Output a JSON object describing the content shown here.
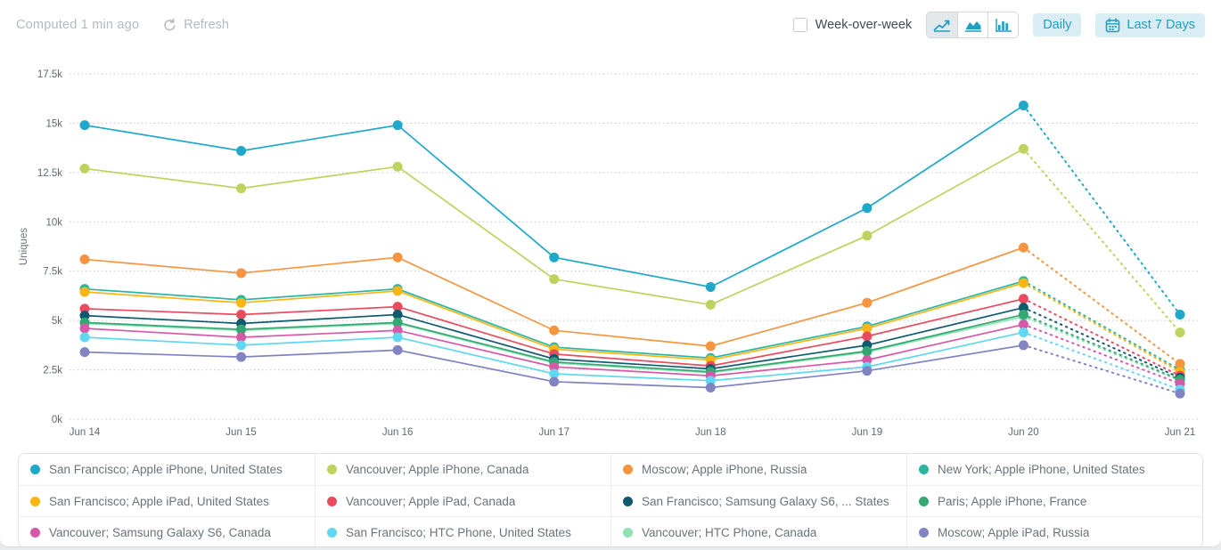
{
  "header": {
    "computed_label": "Computed 1 min ago",
    "refresh_label": "Refresh",
    "week_over_week_label": "Week-over-week",
    "daily_label": "Daily",
    "date_range_label": "Last 7 Days",
    "accent_color": "#1f9fc2",
    "chart_type_selected": "line"
  },
  "chart_data": {
    "type": "line",
    "title": "",
    "xlabel": "",
    "ylabel": "Uniques",
    "unit": "k",
    "ylim": [
      0,
      17.5
    ],
    "ytick_step": 2.5,
    "yticks": [
      "0k",
      "2.5k",
      "5k",
      "7.5k",
      "10k",
      "12.5k",
      "15k",
      "17.5k"
    ],
    "grid": "dotted-horizontal",
    "legend_position": "bottom",
    "last_segment_style": "dotted",
    "x": [
      "Jun 14",
      "Jun 15",
      "Jun 16",
      "Jun 17",
      "Jun 18",
      "Jun 19",
      "Jun 20",
      "Jun 21"
    ],
    "draw_order": [
      3,
      10,
      0,
      1,
      2,
      4,
      5,
      6,
      7,
      8,
      9,
      11
    ],
    "series": [
      {
        "name": "San Francisco; Apple iPhone, United States",
        "color": "#1fa8c9",
        "values": [
          14.9,
          13.6,
          14.9,
          8.2,
          6.7,
          10.7,
          15.9,
          5.3
        ]
      },
      {
        "name": "Vancouver; Apple iPhone, Canada",
        "color": "#bcd35f",
        "values": [
          12.7,
          11.7,
          12.8,
          7.1,
          5.8,
          9.3,
          13.7,
          4.4
        ]
      },
      {
        "name": "Moscow; Apple iPhone, Russia",
        "color": "#f79440",
        "values": [
          8.1,
          7.4,
          8.2,
          4.5,
          3.7,
          5.9,
          8.7,
          2.8
        ]
      },
      {
        "name": "New York; Apple iPhone, United States",
        "color": "#2ab6a3",
        "values": [
          6.6,
          6.05,
          6.6,
          3.65,
          3.1,
          4.7,
          7.0,
          2.5
        ]
      },
      {
        "name": "San Francisco; Apple iPad, United States",
        "color": "#fdb515",
        "values": [
          6.45,
          5.9,
          6.5,
          3.55,
          3.0,
          4.6,
          6.9,
          2.4
        ]
      },
      {
        "name": "Vancouver; Apple iPad, Canada",
        "color": "#ea4b5e",
        "values": [
          5.6,
          5.3,
          5.7,
          3.3,
          2.7,
          4.2,
          6.1,
          2.2
        ]
      },
      {
        "name": "San Francisco; Samsung Galaxy S6, ... States",
        "color": "#105a70",
        "values": [
          5.25,
          4.85,
          5.3,
          3.05,
          2.55,
          3.75,
          5.65,
          2.1
        ]
      },
      {
        "name": "Paris; Apple iPhone, France",
        "color": "#34a873",
        "values": [
          4.9,
          4.55,
          4.9,
          2.9,
          2.4,
          3.45,
          5.3,
          2.0
        ]
      },
      {
        "name": "Vancouver; Samsung Galaxy S6, Canada",
        "color": "#d858a8",
        "values": [
          4.6,
          4.15,
          4.5,
          2.65,
          2.2,
          3.0,
          4.8,
          1.8
        ]
      },
      {
        "name": "San Francisco; HTC Phone, United States",
        "color": "#5fd8f0",
        "values": [
          4.15,
          3.75,
          4.15,
          2.3,
          1.95,
          2.65,
          4.4,
          1.5
        ]
      },
      {
        "name": "Vancouver; HTC Phone, Canada",
        "color": "#8fe2b4",
        "values": [
          4.85,
          4.5,
          4.85,
          2.85,
          2.35,
          3.4,
          5.2,
          1.95
        ]
      },
      {
        "name": "Moscow; Apple iPad, Russia",
        "color": "#8184c0",
        "values": [
          3.4,
          3.15,
          3.5,
          1.9,
          1.6,
          2.45,
          3.75,
          1.3
        ]
      }
    ]
  }
}
